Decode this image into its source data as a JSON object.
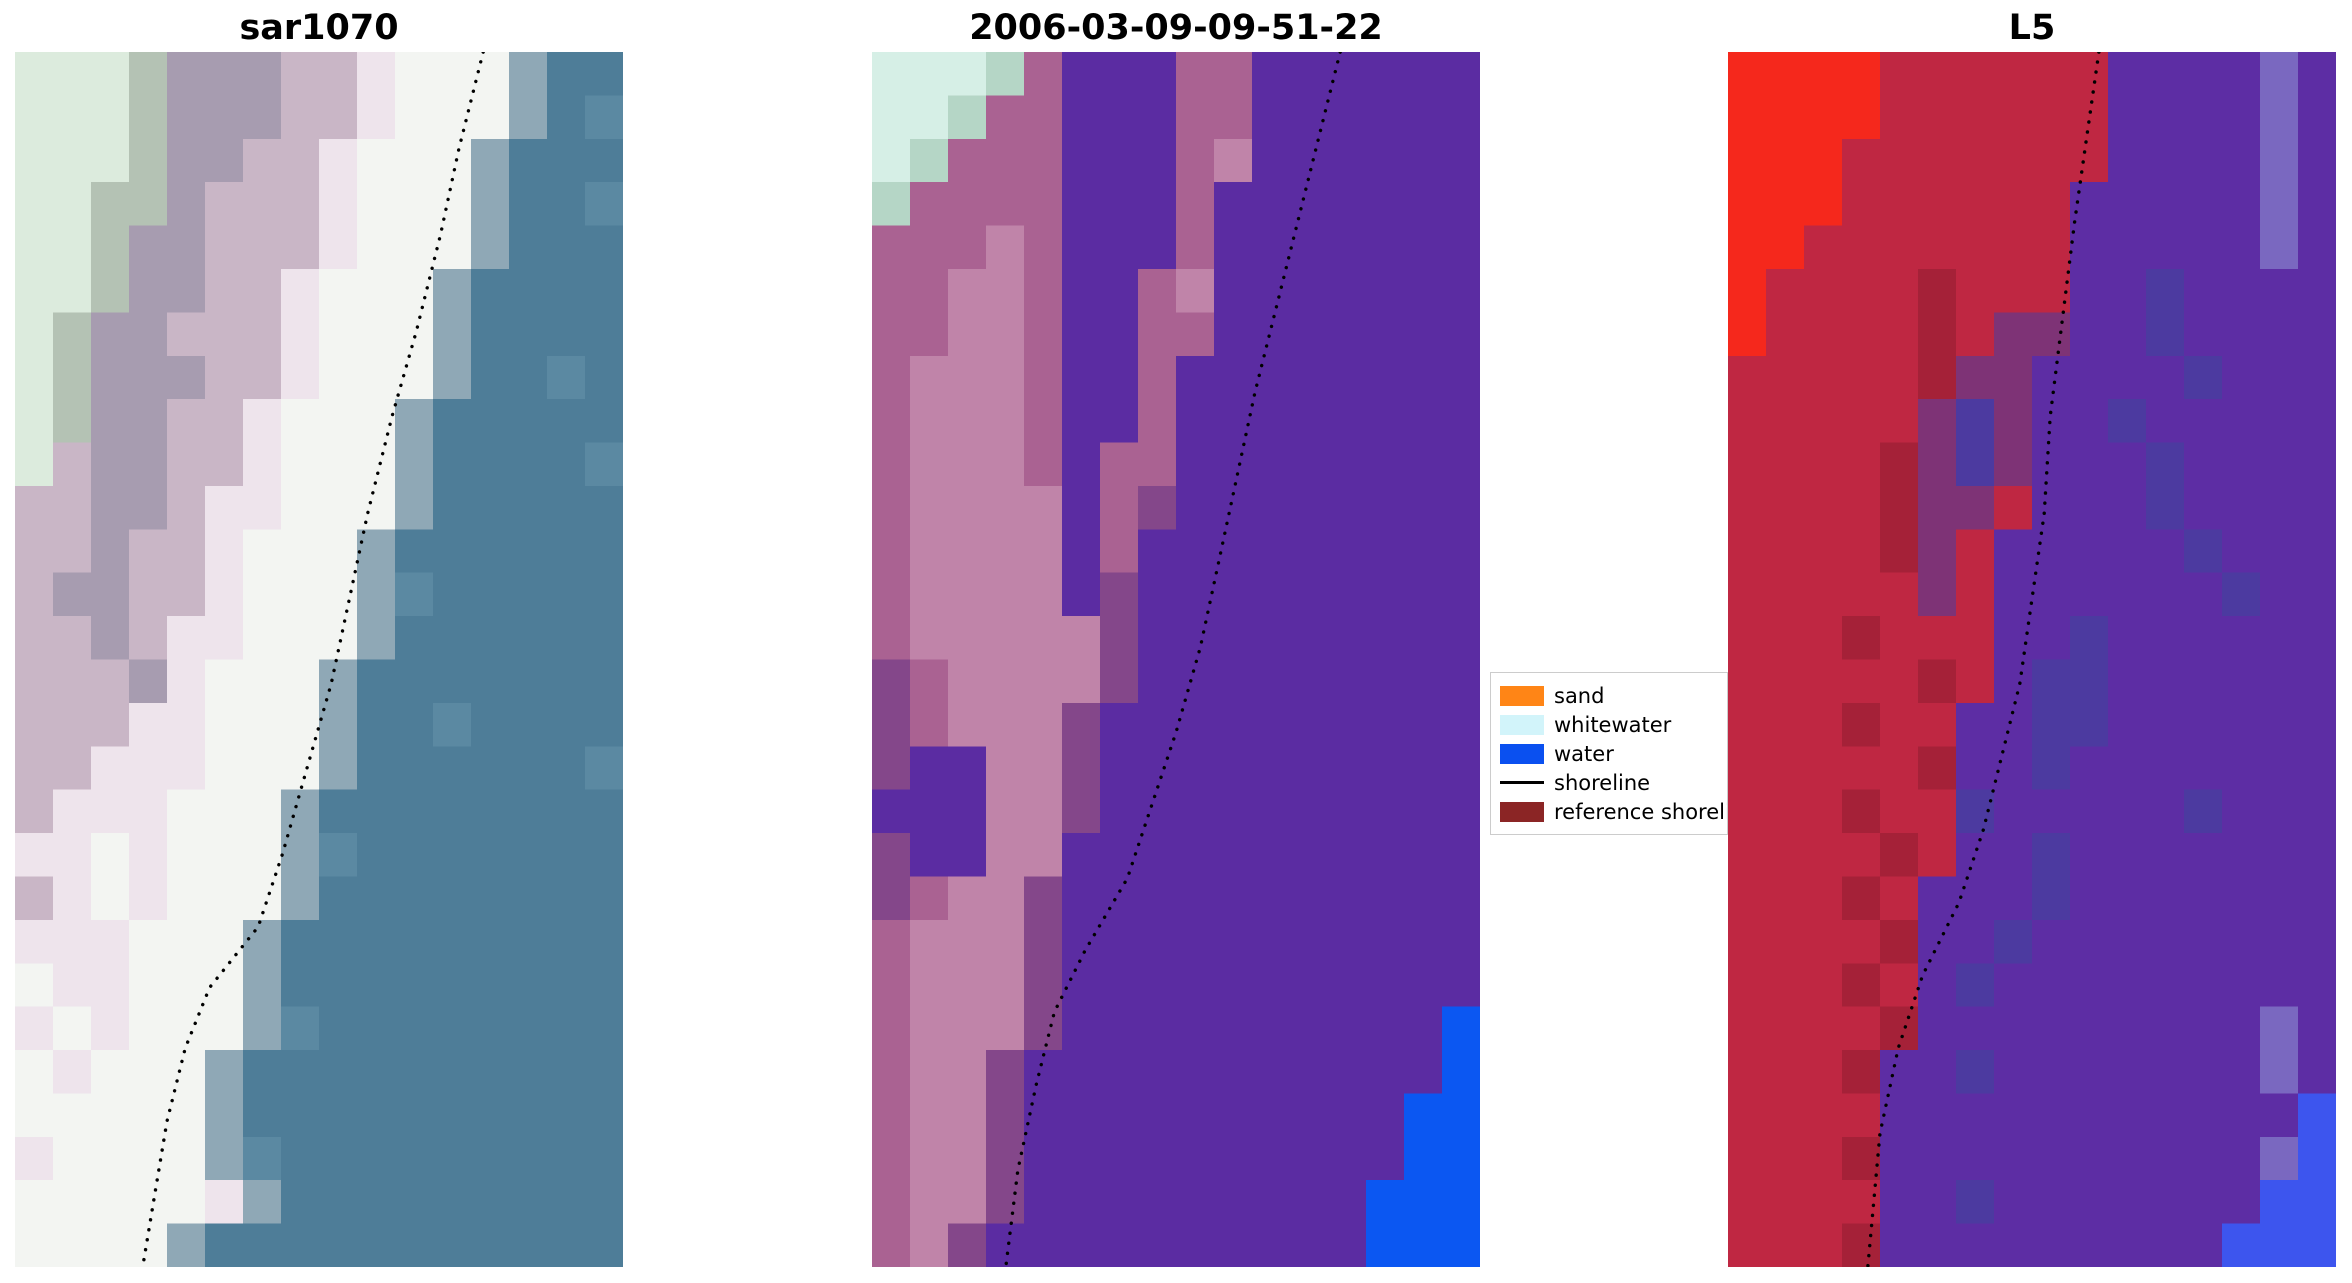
{
  "figure": {
    "background": "#ffffff"
  },
  "shoreline_style": {
    "color": "#000000",
    "width": 3.4,
    "gap": 10
  },
  "chart_data": {
    "type": "heatmap",
    "panels": [
      {
        "title": "sar1070",
        "palette": {
          "a": "#dcebdd",
          "b": "#b4c2b4",
          "c": "#c9b6c6",
          "d": "#a79cb0",
          "w": "#f3f5f2",
          "W": "#eee4ec",
          "l": "#8fa8b6",
          "t": "#4e7d98",
          "s": "#5b89a2",
          "T": "#45718b"
        },
        "rows": [
          "aaabdddccWwwwltt",
          "aaabdddccWwwwlts",
          "aaabddccWwwwlttt",
          "aabbdcccWwwwltts",
          "aabddcccWwwwlttt",
          "aabddccWwwwltttt",
          "abddcccWwwwltttt",
          "abdddccWwwwlttst",
          "abddccWwwwlttttt",
          "acddccWwwwltttts",
          "ccddcWWwwwlttttt",
          "ccdccWwwwltttttt",
          "cddccWwwwlsttttt",
          "ccdcWWwwwltttttt",
          "cccdWwwwlttttttt",
          "cccWWwwwlttstttt",
          "ccWWWwwwltttttts",
          "cWWWwwwltttttttt",
          "WWwWwwwlsttttttt",
          "cWwWwwwltttttttt",
          "WWWwwwlttttttttt",
          "wWWwwwlttttttttt",
          "WwWwwwlstttttttt",
          "wWwwwltttttttttt",
          "wwwwwltttttttttt",
          "Wwwwwlsttttttttt",
          "wwwwwWlttttttttt",
          "wwwwlttttttttttt"
        ],
        "shoreline": [
          [
            0.77,
            0.0
          ],
          [
            0.73,
            0.08
          ],
          [
            0.7,
            0.15
          ],
          [
            0.66,
            0.23
          ],
          [
            0.62,
            0.3
          ],
          [
            0.58,
            0.38
          ],
          [
            0.55,
            0.45
          ],
          [
            0.52,
            0.52
          ],
          [
            0.48,
            0.59
          ],
          [
            0.44,
            0.66
          ],
          [
            0.4,
            0.72
          ],
          [
            0.32,
            0.77
          ],
          [
            0.28,
            0.82
          ],
          [
            0.25,
            0.88
          ],
          [
            0.23,
            0.94
          ],
          [
            0.21,
            1.0
          ]
        ]
      },
      {
        "title": "2006-03-09-09-51-22",
        "palette": {
          "n": "#d6efe6",
          "N": "#b5d6c6",
          "k": "#aa6292",
          "K": "#c084a9",
          "e": "#84478a",
          "P": "#5b2ca2",
          "Q": "#512693",
          "B": "#0b57f2"
        },
        "rows": [
          "nnnNkPPPkkPPPPPP",
          "nnNkkPPPkkPPPPPP",
          "nNkkkPPPkKPPPPPP",
          "NkkkkPPPkPPPPPPP",
          "kkkKkPPPkPPPPPPP",
          "kkKKkPPkKPPPPPPP",
          "kkKKkPPkkPPPPPPP",
          "kKKKkPPkPPPPPPPP",
          "kKKKkPPkPPPPPPPP",
          "kKKKkPkkPPPPPPPP",
          "kKKKKPkePPPPPPPP",
          "kKKKKPkPPPPPPPPP",
          "kKKKKPePPPPPPPPP",
          "kKKKKKePPPPPPPPP",
          "ekKKKKePPPPPPPPP",
          "ekKKKePPPPPPPPPP",
          "ePPKKePPPPPPPPPP",
          "PPPKKePPPPPPPPPP",
          "ePPKKPPPPPPPPPPP",
          "ekKKePPPPPPPPPPP",
          "kKKKePPPPPPPPPPP",
          "kKKKePPPPPPPPPPP",
          "kKKKePPPPPPPPPPB",
          "kKKePPPPPPPPPPPB",
          "kKKePPPPPPPPPPBB",
          "kKKePPPPPPPPPPBB",
          "kKKePPPPPPPPPBBB",
          "kKePPPPPPPPPPBBB"
        ],
        "shoreline": [
          [
            0.77,
            0.0
          ],
          [
            0.74,
            0.06
          ],
          [
            0.71,
            0.12
          ],
          [
            0.67,
            0.2
          ],
          [
            0.63,
            0.28
          ],
          [
            0.6,
            0.35
          ],
          [
            0.57,
            0.42
          ],
          [
            0.54,
            0.49
          ],
          [
            0.5,
            0.56
          ],
          [
            0.46,
            0.62
          ],
          [
            0.42,
            0.68
          ],
          [
            0.35,
            0.74
          ],
          [
            0.3,
            0.79
          ],
          [
            0.27,
            0.85
          ],
          [
            0.24,
            0.92
          ],
          [
            0.22,
            1.0
          ]
        ]
      },
      {
        "title": "L5",
        "palette": {
          "R": "#f5281c",
          "r": "#bf2742",
          "o": "#a52138",
          "v": "#7e3376",
          "P": "#5d2da4",
          "Q": "#4c3aa0",
          "u": "#7a68c0",
          "B": "#3d55ee"
        },
        "rows": [
          "RRRRrrrrrrPPPPuP",
          "RRRRrrrrrrPPPPuP",
          "RRRrrrrrrrPPPPuP",
          "RRRrrrrrrPPPPPuP",
          "RRrrrrrrrPPPPPuP",
          "RrrrrorrrPPQPPPP",
          "RrrrrorvvPPQPPPP",
          "rrrrrovvPPPPQPPP",
          "rrrrrvQvPPQPPPPP",
          "rrrrovQvPPPQPPPP",
          "rrrrovvrPPPQPPPP",
          "rrrrovrPPPPPQPPP",
          "rrrrrvrPPPPPPQPP",
          "rrrorrrPPQPPPPPP",
          "rrrrrorPQQPPPPPP",
          "rrrorrPPQQPPPPPP",
          "rrrrroPPQPPPPPPP",
          "rrrorrQPPPPPQPPP",
          "rrrrorPPQPPPPPPP",
          "rrrorPPPQPPPPPPP",
          "rrrroPPQPPPPPPPP",
          "rrrorPQPPPPPPPPP",
          "rrrroPPPPPPPPPuP",
          "rrroPPQPPPPPPPuP",
          "rrrrPPPPPPPPPPPB",
          "rrroPPPPPPPPPPuB",
          "rrrrPPQPPPPPPPBB",
          "rrroPPPPPPPPPBBB"
        ],
        "shoreline": [
          [
            0.61,
            0.0
          ],
          [
            0.59,
            0.07
          ],
          [
            0.57,
            0.14
          ],
          [
            0.55,
            0.22
          ],
          [
            0.53,
            0.3
          ],
          [
            0.52,
            0.38
          ],
          [
            0.5,
            0.45
          ],
          [
            0.48,
            0.52
          ],
          [
            0.45,
            0.58
          ],
          [
            0.42,
            0.64
          ],
          [
            0.38,
            0.7
          ],
          [
            0.32,
            0.76
          ],
          [
            0.28,
            0.82
          ],
          [
            0.25,
            0.89
          ],
          [
            0.23,
            1.0
          ]
        ]
      }
    ],
    "legend": {
      "position": "center-right",
      "items": [
        {
          "label": "sand",
          "type": "patch",
          "color": "#ff8516"
        },
        {
          "label": "whitewater",
          "type": "patch",
          "color": "#d2f4fa"
        },
        {
          "label": "water",
          "type": "patch",
          "color": "#0a50f0"
        },
        {
          "label": "shoreline",
          "type": "line",
          "color": "#000000"
        },
        {
          "label": "reference shoreline",
          "type": "patch",
          "color": "#8b2525"
        }
      ]
    }
  }
}
